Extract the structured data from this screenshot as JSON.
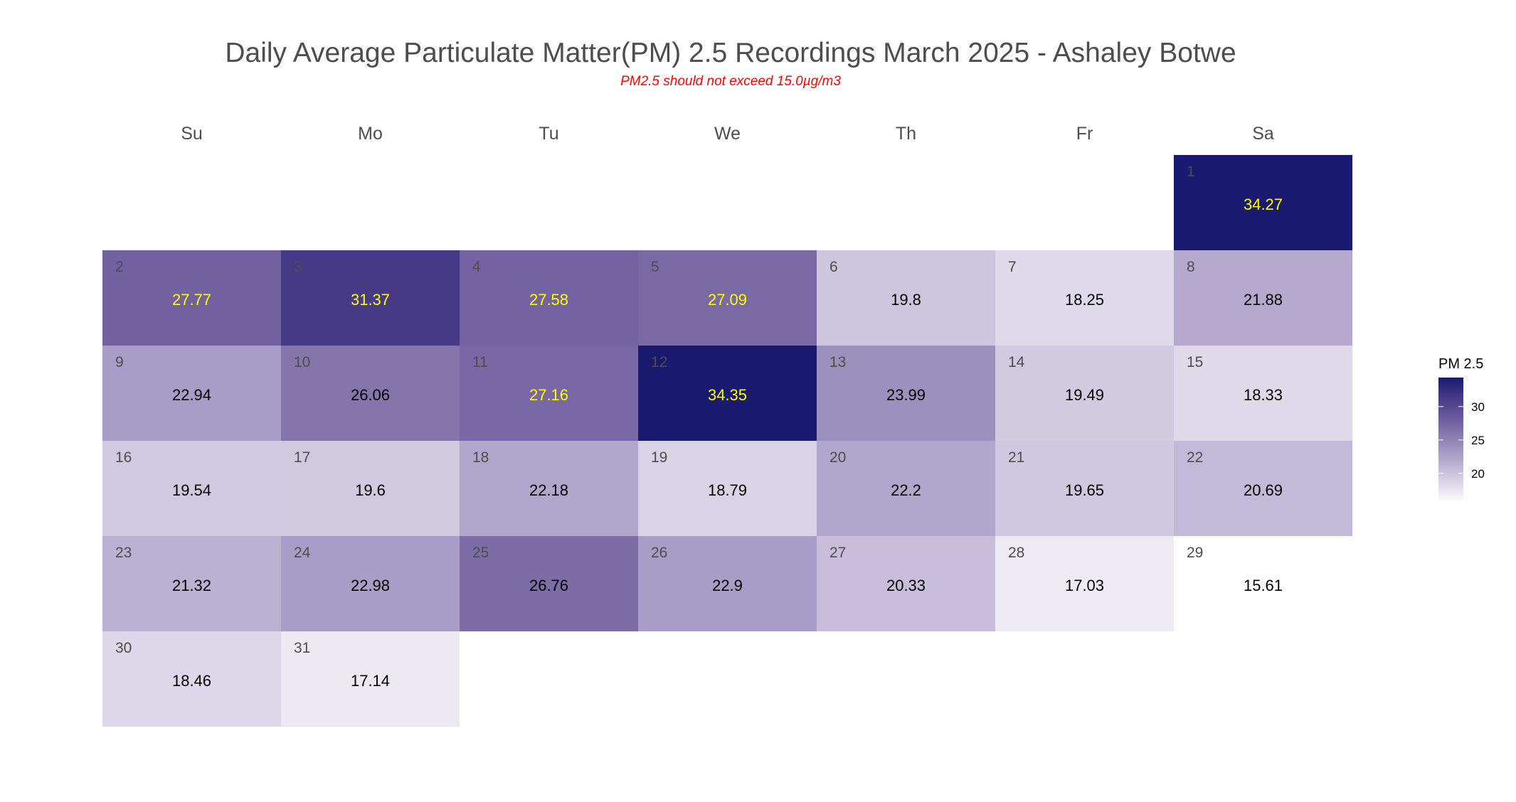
{
  "chart_data": {
    "type": "heatmap",
    "subtype": "calendar",
    "title": "Daily Average Particulate Matter(PM) 2.5 Recordings March 2025 -  Ashaley Botwe",
    "subtitle": "PM2.5 should not exceed 15.0µg/m3",
    "month": "March",
    "year": 2025,
    "weekdays": [
      "Su",
      "Mo",
      "Tu",
      "We",
      "Th",
      "Fr",
      "Sa"
    ],
    "first_weekday_index": 6,
    "days": [
      {
        "day": 1,
        "value": 34.27
      },
      {
        "day": 2,
        "value": 27.77
      },
      {
        "day": 3,
        "value": 31.37
      },
      {
        "day": 4,
        "value": 27.58
      },
      {
        "day": 5,
        "value": 27.09
      },
      {
        "day": 6,
        "value": 19.8
      },
      {
        "day": 7,
        "value": 18.25
      },
      {
        "day": 8,
        "value": 21.88
      },
      {
        "day": 9,
        "value": 22.94
      },
      {
        "day": 10,
        "value": 26.06
      },
      {
        "day": 11,
        "value": 27.16
      },
      {
        "day": 12,
        "value": 34.35
      },
      {
        "day": 13,
        "value": 23.99
      },
      {
        "day": 14,
        "value": 19.49
      },
      {
        "day": 15,
        "value": 18.33
      },
      {
        "day": 16,
        "value": 19.54
      },
      {
        "day": 17,
        "value": 19.6
      },
      {
        "day": 18,
        "value": 22.18
      },
      {
        "day": 19,
        "value": 18.79
      },
      {
        "day": 20,
        "value": 22.2
      },
      {
        "day": 21,
        "value": 19.65
      },
      {
        "day": 22,
        "value": 20.69
      },
      {
        "day": 23,
        "value": 21.32
      },
      {
        "day": 24,
        "value": 22.98
      },
      {
        "day": 25,
        "value": 26.76
      },
      {
        "day": 26,
        "value": 22.9
      },
      {
        "day": 27,
        "value": 20.33
      },
      {
        "day": 28,
        "value": 17.03
      },
      {
        "day": 29,
        "value": 15.61
      },
      {
        "day": 30,
        "value": 18.46
      },
      {
        "day": 31,
        "value": 17.14
      }
    ],
    "value_label_threshold": 27,
    "label_color_above_threshold": "#ffff00",
    "label_color_below_threshold": "#000000",
    "day_number_color": "#4d4d4d",
    "legend": {
      "title": "PM 2.5",
      "ticks": [
        20,
        25,
        30
      ],
      "range": [
        15.61,
        34.35
      ],
      "position": "right"
    },
    "color_scale": {
      "low": "#ffffff",
      "high": "#191970",
      "stops": [
        {
          "value": 15.61,
          "color": "#ffffff"
        },
        {
          "value": 17.03,
          "color": "#edeaf4"
        },
        {
          "value": 19.65,
          "color": "#d0c8e0"
        },
        {
          "value": 20.69,
          "color": "#c3b9d8"
        },
        {
          "value": 22.94,
          "color": "#a89dc6"
        },
        {
          "value": 23.99,
          "color": "#9c90bd"
        },
        {
          "value": 26.06,
          "color": "#8476ab"
        },
        {
          "value": 27.16,
          "color": "#7868a5"
        },
        {
          "value": 31.37,
          "color": "#463a86"
        },
        {
          "value": 34.35,
          "color": "#191970"
        }
      ]
    }
  }
}
